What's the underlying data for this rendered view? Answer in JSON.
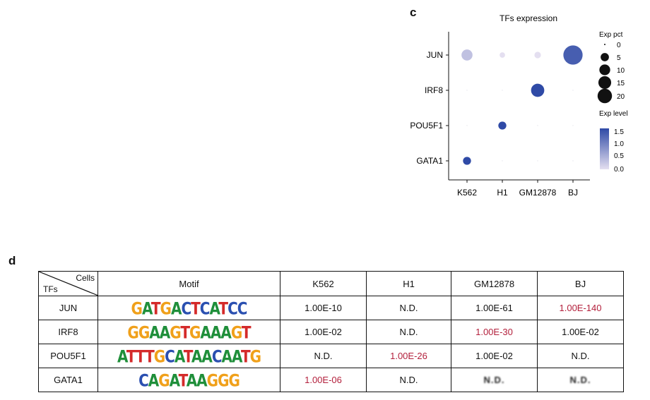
{
  "panel_c": {
    "letter": "c",
    "chart_data": {
      "type": "dot",
      "title": "TFs expression",
      "categories": [
        "K562",
        "H1",
        "GM12878",
        "BJ"
      ],
      "tfs": [
        "JUN",
        "IRF8",
        "POU5F1",
        "GATA1"
      ],
      "points": [
        {
          "tf": "JUN",
          "cell": "K562",
          "pct": 5,
          "level": 0.3
        },
        {
          "tf": "JUN",
          "cell": "H1",
          "pct": 0.5,
          "level": 0.0
        },
        {
          "tf": "JUN",
          "cell": "GM12878",
          "pct": 1,
          "level": 0.0
        },
        {
          "tf": "JUN",
          "cell": "BJ",
          "pct": 20,
          "level": 1.3
        },
        {
          "tf": "IRF8",
          "cell": "K562",
          "pct": 0,
          "level": 0.0
        },
        {
          "tf": "IRF8",
          "cell": "H1",
          "pct": 0,
          "level": 0.0
        },
        {
          "tf": "IRF8",
          "cell": "GM12878",
          "pct": 8,
          "level": 1.5
        },
        {
          "tf": "IRF8",
          "cell": "BJ",
          "pct": 0,
          "level": 0.0
        },
        {
          "tf": "POU5F1",
          "cell": "K562",
          "pct": 0,
          "level": 0.0
        },
        {
          "tf": "POU5F1",
          "cell": "H1",
          "pct": 2,
          "level": 1.5
        },
        {
          "tf": "POU5F1",
          "cell": "GM12878",
          "pct": 0,
          "level": 0.0
        },
        {
          "tf": "POU5F1",
          "cell": "BJ",
          "pct": 0,
          "level": 0.0
        },
        {
          "tf": "GATA1",
          "cell": "K562",
          "pct": 2,
          "level": 1.5
        },
        {
          "tf": "GATA1",
          "cell": "H1",
          "pct": 0,
          "level": 0.0
        },
        {
          "tf": "GATA1",
          "cell": "GM12878",
          "pct": 0,
          "level": 0.0
        },
        {
          "tf": "GATA1",
          "cell": "BJ",
          "pct": 0,
          "level": 0.0
        }
      ],
      "size_legend": {
        "title": "Exp pct",
        "values": [
          0,
          5,
          10,
          15,
          20
        ]
      },
      "color_legend": {
        "title": "Exp level",
        "ticks": [
          "1.5",
          "1.0",
          "0.5",
          "0.0"
        ],
        "range": [
          0,
          1.5
        ],
        "low_color": "#e4dff0",
        "high_color": "#2f4aa6"
      }
    }
  },
  "panel_d": {
    "letter": "d",
    "header": {
      "cells_label": "Cells",
      "tfs_label": "TFs",
      "motif_label": "Motif",
      "columns": [
        "K562",
        "H1",
        "GM12878",
        "BJ"
      ]
    },
    "rows": [
      {
        "tf": "JUN",
        "motif": "GATGACTCATCC",
        "values": [
          "1.00E-10",
          "N.D.",
          "1.00E-61",
          "1.00E-140"
        ],
        "highlight": [
          false,
          false,
          false,
          true
        ]
      },
      {
        "tf": "IRF8",
        "motif": "GGAAGTGAAAGT",
        "values": [
          "1.00E-02",
          "N.D.",
          "1.00E-30",
          "1.00E-02"
        ],
        "highlight": [
          false,
          false,
          true,
          false
        ]
      },
      {
        "tf": "POU5F1",
        "motif": "ATTTGCATAACAATG",
        "values": [
          "N.D.",
          "1.00E-26",
          "1.00E-02",
          "N.D."
        ],
        "highlight": [
          false,
          true,
          false,
          false
        ]
      },
      {
        "tf": "GATA1",
        "motif": "CAGATAAGGG",
        "values": [
          "1.00E-06",
          "N.D.",
          "N.D.",
          "N.D."
        ],
        "highlight": [
          true,
          false,
          false,
          false
        ]
      }
    ]
  }
}
